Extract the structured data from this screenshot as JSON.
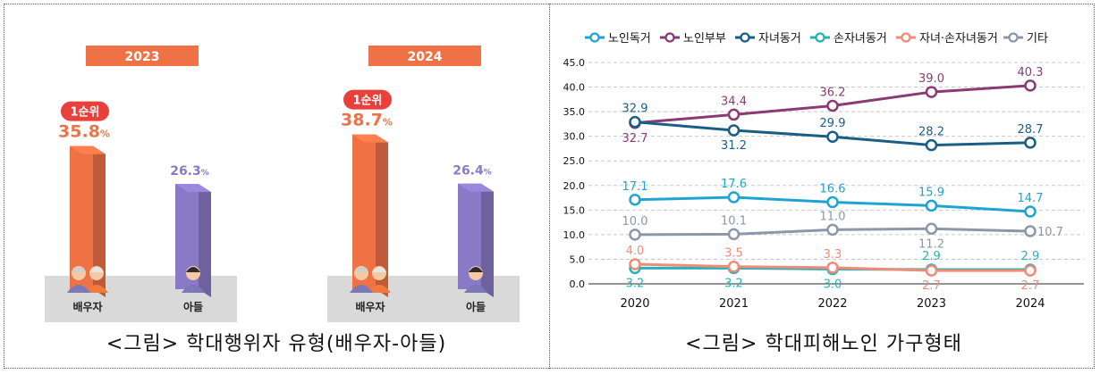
{
  "left": {
    "caption": "<그림> 학대행위자 유형(배우자-아들)",
    "rank_badge": "1순위",
    "percent_sign": "%",
    "panels": [
      {
        "year": "2023",
        "bars": [
          {
            "label": "배우자",
            "value": 35.8,
            "value_text": "35.8",
            "color": "#ef7246",
            "top_rank": true
          },
          {
            "label": "아들",
            "value": 26.3,
            "value_text": "26.3",
            "color": "#8a79c6",
            "top_rank": false
          }
        ]
      },
      {
        "year": "2024",
        "bars": [
          {
            "label": "배우자",
            "value": 38.7,
            "value_text": "38.7",
            "color": "#ef7246",
            "top_rank": true
          },
          {
            "label": "아들",
            "value": 26.4,
            "value_text": "26.4",
            "color": "#8a79c6",
            "top_rank": false
          }
        ]
      }
    ],
    "colors": {
      "accent": "#ef7246",
      "purple": "#8a79c6",
      "badge": "#e8413c",
      "floor": "#d9d9d9"
    }
  },
  "right": {
    "caption": "<그림> 학대피해노인 가구형태",
    "chart_data": {
      "type": "line",
      "x": [
        "2020",
        "2021",
        "2022",
        "2023",
        "2024"
      ],
      "ylim": [
        0,
        45
      ],
      "yticks": [
        "0.0",
        "5.0",
        "10.0",
        "15.0",
        "20.0",
        "25.0",
        "30.0",
        "35.0",
        "40.0",
        "45.0"
      ],
      "grid": true,
      "legend_position": "top",
      "series": [
        {
          "name": "노인독거",
          "color": "#1fa4d2",
          "values": [
            17.1,
            17.6,
            16.6,
            15.9,
            14.7
          ],
          "labels": [
            "17.1",
            "17.6",
            "16.6",
            "15.9",
            "14.7"
          ],
          "label_pos": [
            "above",
            "above",
            "above",
            "above",
            "above"
          ]
        },
        {
          "name": "노인부부",
          "color": "#8a3b74",
          "values": [
            32.7,
            34.4,
            36.2,
            39.0,
            40.3
          ],
          "labels": [
            "32.7",
            "34.4",
            "36.2",
            "39.0",
            "40.3"
          ],
          "label_pos": [
            "below",
            "above",
            "above",
            "above",
            "above"
          ]
        },
        {
          "name": "자녀동거",
          "color": "#1a5e86",
          "values": [
            32.9,
            31.2,
            29.9,
            28.2,
            28.7
          ],
          "labels": [
            "32.9",
            "31.2",
            "29.9",
            "28.2",
            "28.7"
          ],
          "label_pos": [
            "above",
            "below",
            "above",
            "above",
            "above"
          ]
        },
        {
          "name": "손자녀동거",
          "color": "#25b2b8",
          "values": [
            3.2,
            3.2,
            3.0,
            2.9,
            2.9
          ],
          "labels": [
            "3.2",
            "3.2",
            "3.0",
            "2.9",
            "2.9"
          ],
          "label_pos": [
            "below",
            "below",
            "below",
            "above",
            "above"
          ]
        },
        {
          "name": "자녀·손자녀동거",
          "color": "#f08b78",
          "values": [
            4.0,
            3.5,
            3.3,
            2.7,
            2.7
          ],
          "labels": [
            "4.0",
            "3.5",
            "3.3",
            "2.7",
            "2.7"
          ],
          "label_pos": [
            "above",
            "above",
            "above",
            "below",
            "below"
          ]
        },
        {
          "name": "기타",
          "color": "#8c97a8",
          "values": [
            10.0,
            10.1,
            11.0,
            11.2,
            10.7
          ],
          "labels": [
            "10.0",
            "10.1",
            "11.0",
            "11.2",
            "10.7"
          ],
          "label_pos": [
            "above",
            "above",
            "above",
            "below",
            "right"
          ]
        }
      ]
    }
  }
}
